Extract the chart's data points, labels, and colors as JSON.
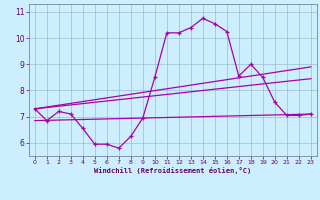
{
  "xlabel": "Windchill (Refroidissement éolien,°C)",
  "bg_color": "#cceeff",
  "line_color": "#aa00aa",
  "grid_color": "#9bbccc",
  "xlim": [
    -0.5,
    23.5
  ],
  "ylim": [
    5.5,
    11.3
  ],
  "yticks": [
    6,
    7,
    8,
    9,
    10,
    11
  ],
  "xticks": [
    0,
    1,
    2,
    3,
    4,
    5,
    6,
    7,
    8,
    9,
    10,
    11,
    12,
    13,
    14,
    15,
    16,
    17,
    18,
    19,
    20,
    21,
    22,
    23
  ],
  "series1_x": [
    0,
    1,
    2,
    3,
    4,
    5,
    6,
    7,
    8,
    9,
    10,
    11,
    12,
    13,
    14,
    15,
    16,
    17,
    18,
    19,
    20,
    21,
    22,
    23
  ],
  "series1_y": [
    7.3,
    6.85,
    7.2,
    7.1,
    6.55,
    5.95,
    5.95,
    5.8,
    6.25,
    6.95,
    8.5,
    10.2,
    10.2,
    10.4,
    10.75,
    10.55,
    10.25,
    8.55,
    9.0,
    8.5,
    7.55,
    7.05,
    7.05,
    7.1
  ],
  "series2_x": [
    0,
    23
  ],
  "series2_y": [
    6.85,
    7.1
  ],
  "series3_x": [
    0,
    23
  ],
  "series3_y": [
    7.3,
    8.45
  ],
  "series4_x": [
    0,
    23
  ],
  "series4_y": [
    7.3,
    8.9
  ]
}
